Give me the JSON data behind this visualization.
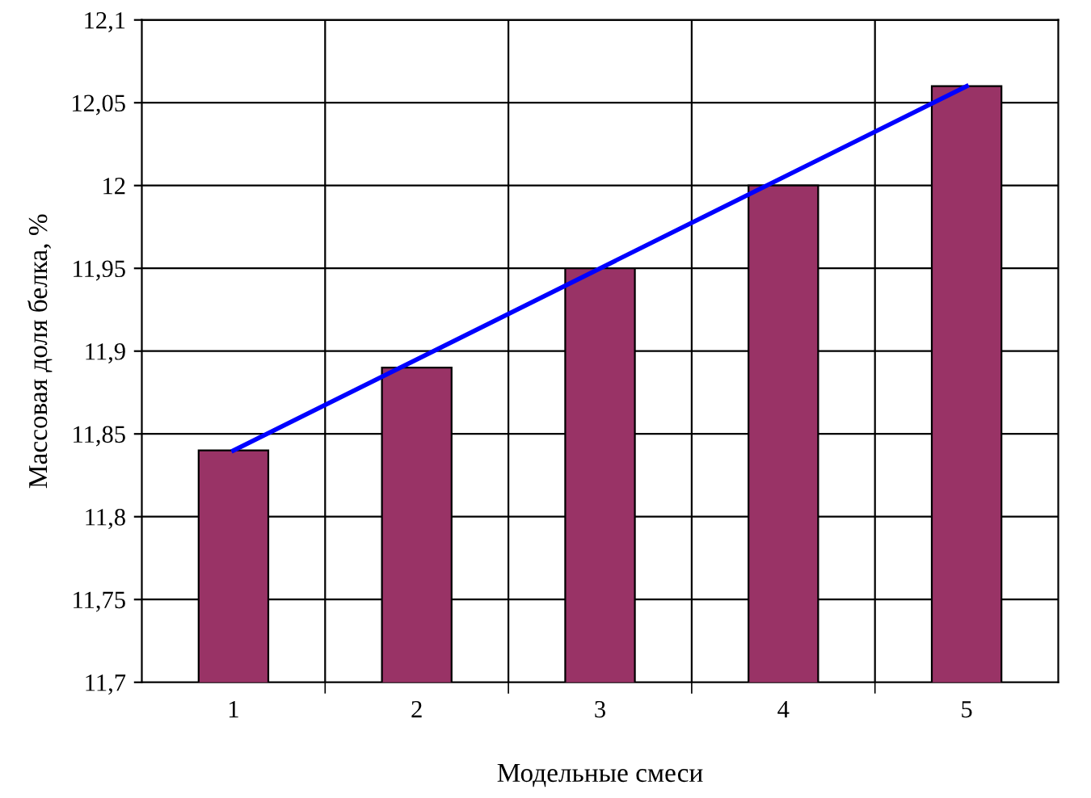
{
  "chart_data": {
    "type": "bar",
    "xlabel": "Модельные смеси",
    "ylabel": "Массовая доля белка, %",
    "categories": [
      "1",
      "2",
      "3",
      "4",
      "5"
    ],
    "series": [
      {
        "color": "#993366",
        "values": [
          11.84,
          11.89,
          11.95,
          12.0,
          12.06
        ]
      },
      {
        "type": "line",
        "color": "#0000ff",
        "values": [
          11.84,
          null,
          null,
          null,
          12.06
        ]
      }
    ],
    "ylim": [
      11.7,
      12.1
    ],
    "yticks": [
      {
        "value": 11.7,
        "label": "11,7"
      },
      {
        "value": 11.75,
        "label": "11,75"
      },
      {
        "value": 11.8,
        "label": "11,8"
      },
      {
        "value": 11.85,
        "label": "11,85"
      },
      {
        "value": 11.9,
        "label": "11,9"
      },
      {
        "value": 11.95,
        "label": "11,95"
      },
      {
        "value": 12.0,
        "label": "12"
      },
      {
        "value": 12.05,
        "label": "12,05"
      },
      {
        "value": 12.1,
        "label": "12,1"
      }
    ],
    "grid": true,
    "legend": false
  }
}
